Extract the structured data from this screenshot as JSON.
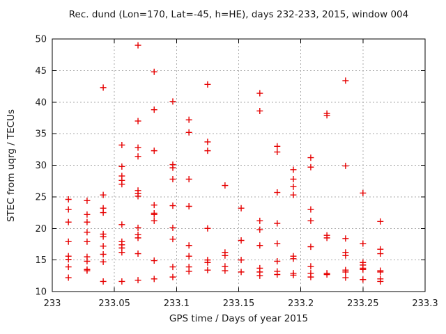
{
  "chart_data": {
    "type": "scatter",
    "title": "Rec. dund (Lon=170, Lat=-45, h=HE), days 232-233, 2015, window 004",
    "xlabel": "GPS time / Days of year 2015",
    "ylabel": "STEC from uqrg / TECUs",
    "xlim": [
      233,
      233.3
    ],
    "ylim": [
      10,
      50
    ],
    "grid": true,
    "legend": false,
    "marker": "plus",
    "colors": {
      "marker": "#e60000",
      "grid": "#aaaaaa",
      "axis": "#000000",
      "text": "#1a1a1a",
      "background": "#ffffff"
    },
    "xticks": [
      {
        "v": 233,
        "label": "233"
      },
      {
        "v": 233.05,
        "label": "233.05"
      },
      {
        "v": 233.1,
        "label": "233.1"
      },
      {
        "v": 233.15,
        "label": "233.15"
      },
      {
        "v": 233.2,
        "label": "233.2"
      },
      {
        "v": 233.25,
        "label": "233.25"
      },
      {
        "v": 233.3,
        "label": "233.3"
      }
    ],
    "yticks": [
      {
        "v": 10,
        "label": "10"
      },
      {
        "v": 15,
        "label": "15"
      },
      {
        "v": 20,
        "label": "20"
      },
      {
        "v": 25,
        "label": "25"
      },
      {
        "v": 30,
        "label": "30"
      },
      {
        "v": 35,
        "label": "35"
      },
      {
        "v": 40,
        "label": "40"
      },
      {
        "v": 45,
        "label": "45"
      },
      {
        "v": 50,
        "label": "50"
      }
    ],
    "points": [
      [
        233.013,
        24.6
      ],
      [
        233.013,
        23.0
      ],
      [
        233.013,
        21.0
      ],
      [
        233.013,
        17.9
      ],
      [
        233.013,
        15.6
      ],
      [
        233.013,
        15.1
      ],
      [
        233.013,
        13.9
      ],
      [
        233.013,
        12.2
      ],
      [
        233.028,
        24.4
      ],
      [
        233.028,
        22.2
      ],
      [
        233.028,
        21.0
      ],
      [
        233.028,
        19.4
      ],
      [
        233.028,
        17.9
      ],
      [
        233.028,
        15.5
      ],
      [
        233.028,
        14.8
      ],
      [
        233.028,
        13.5
      ],
      [
        233.028,
        13.3
      ],
      [
        233.041,
        42.3
      ],
      [
        233.041,
        25.3
      ],
      [
        233.041,
        23.2
      ],
      [
        233.041,
        22.5
      ],
      [
        233.041,
        19.1
      ],
      [
        233.041,
        18.7
      ],
      [
        233.041,
        17.2
      ],
      [
        233.041,
        15.9
      ],
      [
        233.041,
        14.7
      ],
      [
        233.041,
        11.6
      ],
      [
        233.056,
        33.2
      ],
      [
        233.056,
        29.8
      ],
      [
        233.056,
        28.3
      ],
      [
        233.056,
        27.6
      ],
      [
        233.056,
        27.0
      ],
      [
        233.056,
        20.6
      ],
      [
        233.056,
        17.9
      ],
      [
        233.056,
        17.4
      ],
      [
        233.056,
        16.9
      ],
      [
        233.056,
        16.2
      ],
      [
        233.056,
        11.6
      ],
      [
        233.069,
        49.0
      ],
      [
        233.069,
        37.0
      ],
      [
        233.069,
        32.8
      ],
      [
        233.069,
        31.4
      ],
      [
        233.069,
        26.0
      ],
      [
        233.069,
        25.5
      ],
      [
        233.069,
        25.1
      ],
      [
        233.069,
        20.1
      ],
      [
        233.069,
        19.0
      ],
      [
        233.069,
        18.5
      ],
      [
        233.069,
        16.0
      ],
      [
        233.069,
        11.8
      ],
      [
        233.082,
        44.8
      ],
      [
        233.082,
        38.8
      ],
      [
        233.082,
        32.3
      ],
      [
        233.082,
        23.7
      ],
      [
        233.082,
        22.4
      ],
      [
        233.082,
        22.2
      ],
      [
        233.082,
        21.2
      ],
      [
        233.082,
        14.9
      ],
      [
        233.082,
        12.0
      ],
      [
        233.097,
        40.1
      ],
      [
        233.097,
        30.1
      ],
      [
        233.097,
        29.6
      ],
      [
        233.097,
        27.8
      ],
      [
        233.097,
        23.6
      ],
      [
        233.097,
        20.1
      ],
      [
        233.097,
        18.3
      ],
      [
        233.097,
        13.9
      ],
      [
        233.097,
        12.3
      ],
      [
        233.11,
        37.2
      ],
      [
        233.11,
        35.2
      ],
      [
        233.11,
        27.8
      ],
      [
        233.11,
        23.5
      ],
      [
        233.11,
        17.3
      ],
      [
        233.11,
        15.6
      ],
      [
        233.11,
        13.9
      ],
      [
        233.11,
        13.2
      ],
      [
        233.125,
        42.8
      ],
      [
        233.125,
        33.7
      ],
      [
        233.125,
        32.3
      ],
      [
        233.125,
        20.0
      ],
      [
        233.125,
        15.0
      ],
      [
        233.125,
        14.6
      ],
      [
        233.125,
        13.4
      ],
      [
        233.139,
        26.8
      ],
      [
        233.139,
        16.2
      ],
      [
        233.139,
        15.7
      ],
      [
        233.139,
        14.0
      ],
      [
        233.139,
        13.3
      ],
      [
        233.152,
        23.2
      ],
      [
        233.152,
        18.1
      ],
      [
        233.152,
        15.0
      ],
      [
        233.152,
        13.1
      ],
      [
        233.167,
        41.4
      ],
      [
        233.167,
        38.6
      ],
      [
        233.167,
        21.2
      ],
      [
        233.167,
        19.8
      ],
      [
        233.167,
        17.3
      ],
      [
        233.167,
        13.7
      ],
      [
        233.167,
        13.1
      ],
      [
        233.167,
        12.5
      ],
      [
        233.181,
        33.0
      ],
      [
        233.181,
        32.1
      ],
      [
        233.181,
        25.7
      ],
      [
        233.181,
        20.8
      ],
      [
        233.181,
        17.6
      ],
      [
        233.181,
        14.8
      ],
      [
        233.181,
        13.2
      ],
      [
        233.181,
        12.7
      ],
      [
        233.194,
        29.3
      ],
      [
        233.194,
        27.8
      ],
      [
        233.194,
        26.6
      ],
      [
        233.194,
        25.3
      ],
      [
        233.194,
        15.6
      ],
      [
        233.194,
        15.2
      ],
      [
        233.194,
        12.9
      ],
      [
        233.194,
        12.6
      ],
      [
        233.208,
        31.2
      ],
      [
        233.208,
        29.7
      ],
      [
        233.208,
        23.0
      ],
      [
        233.208,
        21.2
      ],
      [
        233.208,
        17.1
      ],
      [
        233.208,
        14.0
      ],
      [
        233.208,
        12.9
      ],
      [
        233.208,
        12.3
      ],
      [
        233.221,
        38.2
      ],
      [
        233.221,
        37.9
      ],
      [
        233.221,
        18.9
      ],
      [
        233.221,
        18.5
      ],
      [
        233.221,
        12.9
      ],
      [
        233.221,
        12.7
      ],
      [
        233.236,
        43.4
      ],
      [
        233.236,
        29.9
      ],
      [
        233.236,
        18.4
      ],
      [
        233.236,
        16.2
      ],
      [
        233.236,
        15.7
      ],
      [
        233.236,
        13.4
      ],
      [
        233.236,
        13.1
      ],
      [
        233.236,
        12.2
      ],
      [
        233.25,
        25.6
      ],
      [
        233.25,
        17.6
      ],
      [
        233.25,
        14.6
      ],
      [
        233.25,
        14.2
      ],
      [
        233.25,
        13.7
      ],
      [
        233.25,
        13.5
      ],
      [
        233.25,
        11.9
      ],
      [
        233.264,
        21.1
      ],
      [
        233.264,
        16.7
      ],
      [
        233.264,
        16.0
      ],
      [
        233.264,
        13.3
      ],
      [
        233.264,
        13.1
      ],
      [
        233.264,
        12.0
      ],
      [
        233.264,
        11.6
      ]
    ]
  }
}
